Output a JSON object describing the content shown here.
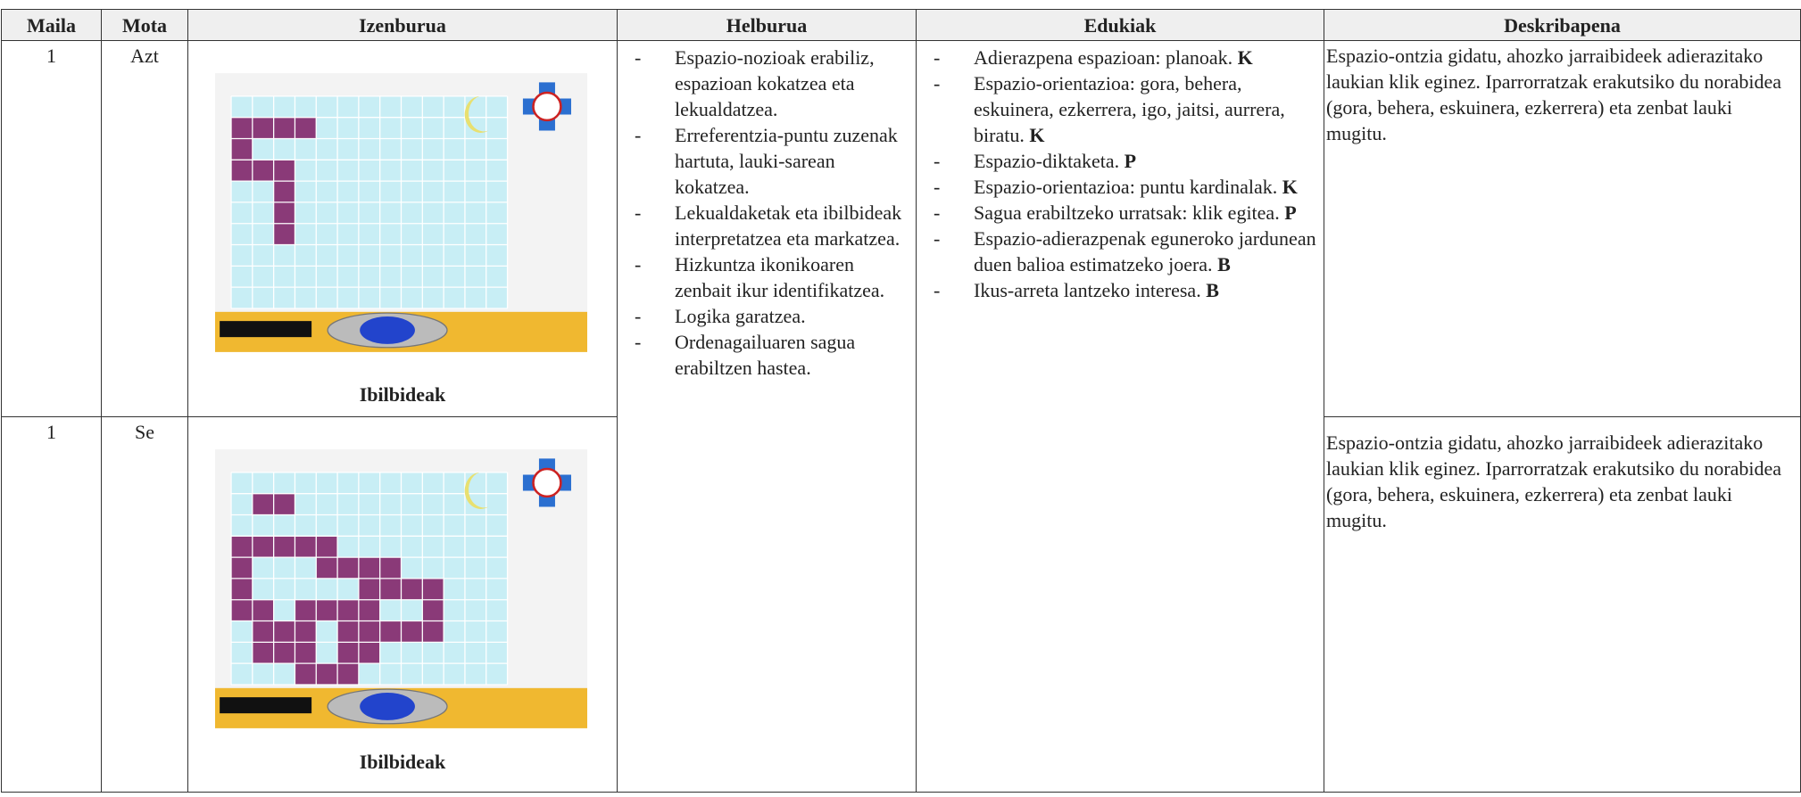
{
  "table": {
    "headers": [
      "Maila",
      "Mota",
      "Izenburua",
      "Helburua",
      "Edukiak",
      "Deskribapena"
    ],
    "rows": [
      {
        "maila": "1",
        "mota": "Azt",
        "izenburua": "Ibilbideak",
        "deskribapena": "Espazio-ontzia gidatu, ahozko jarraibideek adierazitako laukian klik eginez. Iparrorratzak erakutsiko du norabidea (gora, behera, eskuinera, ezkerrera) eta zenbat lauki mugitu."
      },
      {
        "maila": "1",
        "mota": "Se",
        "izenburua": "Ibilbideak",
        "deskribapena": "Espazio-ontzia gidatu, ahozko jarraibideek adierazitako laukian klik eginez. Iparrorratzak erakutsiko du norabidea (gora, behera, eskuinera, ezkerrera) eta zenbat lauki mugitu."
      }
    ],
    "helburua": [
      "Espazio-nozioak erabiliz, espazioan kokatzea eta lekualdatzea.",
      "Erreferentzia-puntu zuzenak hartuta, lauki-sarean kokatzea.",
      "Lekualdaketak eta ibilbideak interpretatzea eta markatzea.",
      "Hizkuntza ikonikoaren zenbait ikur identifikatzea.",
      "Logika garatzea.",
      "Ordenagailuaren sagua erabiltzen hastea."
    ],
    "edukiak": [
      {
        "text": "Adierazpena espazioan: planoak.",
        "code": "K"
      },
      {
        "text": "Espazio-orientazioa: gora, behera, eskuinera, ezkerrera, igo, jaitsi, aurrera, biratu.",
        "code": "K"
      },
      {
        "text": "Espazio-diktaketa.",
        "code": "P"
      },
      {
        "text": "Espazio-orientazioa: puntu kardinalak.",
        "code": "K"
      },
      {
        "text": "Sagua erabiltzeko urratsak: klik egitea.",
        "code": "P"
      },
      {
        "text": "Espazio-adierazpenak eguneroko jardunean duen balioa estimatzeko joera.",
        "code": "B"
      },
      {
        "text": "Ikus-arreta lantzeko interesa.",
        "code": "B"
      }
    ]
  }
}
